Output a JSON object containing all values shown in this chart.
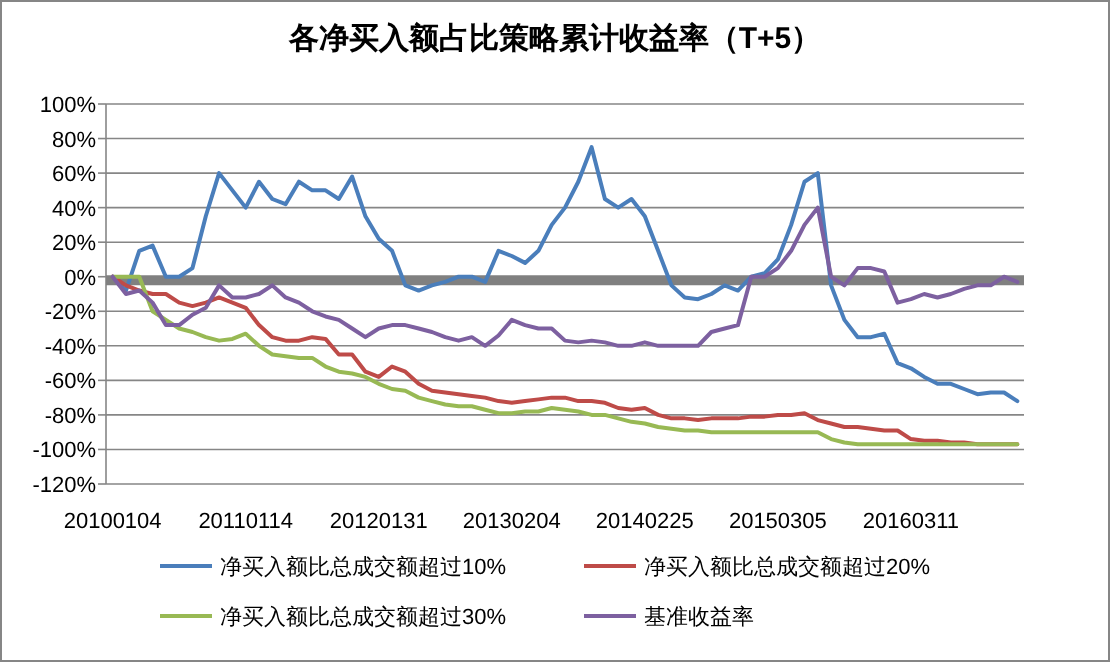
{
  "chart_data": {
    "type": "line",
    "title": "各净买入额占比策略累计收益率（T+5）",
    "categories": [
      "20100104",
      null,
      null,
      null,
      null,
      null,
      null,
      null,
      null,
      null,
      "20110114",
      null,
      null,
      null,
      null,
      null,
      null,
      null,
      null,
      null,
      "20120131",
      null,
      null,
      null,
      null,
      null,
      null,
      null,
      null,
      null,
      "20130204",
      null,
      null,
      null,
      null,
      null,
      null,
      null,
      null,
      null,
      "20140225",
      null,
      null,
      null,
      null,
      null,
      null,
      null,
      null,
      null,
      "20150305",
      null,
      null,
      null,
      null,
      null,
      null,
      null,
      null,
      null,
      "20160311",
      null,
      null,
      null,
      null,
      null,
      null,
      null,
      null
    ],
    "ylim": [
      -120,
      100
    ],
    "yticks": [
      {
        "value": -120,
        "label": "-120%"
      },
      {
        "value": -100,
        "label": "-100%"
      },
      {
        "value": -80,
        "label": "-80%"
      },
      {
        "value": -60,
        "label": "-60%"
      },
      {
        "value": -40,
        "label": "-40%"
      },
      {
        "value": -20,
        "label": "-20%"
      },
      {
        "value": 0,
        "label": "0%"
      },
      {
        "value": 20,
        "label": "20%"
      },
      {
        "value": 40,
        "label": "40%"
      },
      {
        "value": 60,
        "label": "60%"
      },
      {
        "value": 80,
        "label": "80%"
      },
      {
        "value": 100,
        "label": "100%"
      }
    ],
    "grid": "y",
    "legend": "bottom",
    "ref_lines": [
      {
        "axis": "y",
        "value": -2,
        "color": "#808080"
      }
    ],
    "series": [
      {
        "name": "净买入额比总成交额超过10%",
        "color": "#4a7ebb",
        "values": [
          0,
          -8,
          15,
          18,
          0,
          0,
          5,
          35,
          60,
          50,
          40,
          55,
          45,
          42,
          55,
          50,
          50,
          45,
          58,
          35,
          22,
          15,
          -5,
          -8,
          -5,
          -3,
          0,
          0,
          -3,
          15,
          12,
          8,
          15,
          30,
          40,
          55,
          75,
          45,
          40,
          45,
          35,
          15,
          -5,
          -12,
          -13,
          -10,
          -5,
          -8,
          0,
          2,
          10,
          30,
          55,
          60,
          -5,
          -25,
          -35,
          -35,
          -33,
          -50,
          -53,
          -58,
          -62,
          -62,
          -65,
          -68,
          -67,
          -67,
          -72
        ]
      },
      {
        "name": "净买入额比总成交额超过20%",
        "color": "#be4b48",
        "values": [
          0,
          -5,
          -8,
          -10,
          -10,
          -15,
          -17,
          -15,
          -12,
          -15,
          -18,
          -28,
          -35,
          -37,
          -37,
          -35,
          -36,
          -45,
          -45,
          -55,
          -58,
          -52,
          -55,
          -62,
          -66,
          -67,
          -68,
          -69,
          -70,
          -72,
          -73,
          -72,
          -71,
          -70,
          -70,
          -72,
          -72,
          -73,
          -76,
          -77,
          -76,
          -80,
          -82,
          -82,
          -83,
          -82,
          -82,
          -82,
          -81,
          -81,
          -80,
          -80,
          -79,
          -83,
          -85,
          -87,
          -87,
          -88,
          -89,
          -89,
          -94,
          -95,
          -95,
          -96,
          -96,
          -97,
          -97,
          -97,
          -97
        ]
      },
      {
        "name": "净买入额比总成交额超过30%",
        "color": "#98b954",
        "values": [
          0,
          0,
          0,
          -20,
          -25,
          -30,
          -32,
          -35,
          -37,
          -36,
          -33,
          -40,
          -45,
          -46,
          -47,
          -47,
          -52,
          -55,
          -56,
          -58,
          -62,
          -65,
          -66,
          -70,
          -72,
          -74,
          -75,
          -75,
          -77,
          -79,
          -79,
          -78,
          -78,
          -76,
          -77,
          -78,
          -80,
          -80,
          -82,
          -84,
          -85,
          -87,
          -88,
          -89,
          -89,
          -90,
          -90,
          -90,
          -90,
          -90,
          -90,
          -90,
          -90,
          -90,
          -94,
          -96,
          -97,
          -97,
          -97,
          -97,
          -97,
          -97,
          -97,
          -97,
          -97,
          -97,
          -97,
          -97,
          -97
        ]
      },
      {
        "name": "基准收益率",
        "color": "#7d60a0",
        "values": [
          0,
          -10,
          -8,
          -15,
          -28,
          -28,
          -22,
          -18,
          -5,
          -12,
          -12,
          -10,
          -5,
          -12,
          -15,
          -20,
          -23,
          -25,
          -30,
          -35,
          -30,
          -28,
          -28,
          -30,
          -32,
          -35,
          -37,
          -35,
          -40,
          -34,
          -25,
          -28,
          -30,
          -30,
          -37,
          -38,
          -37,
          -38,
          -40,
          -40,
          -38,
          -40,
          -40,
          -40,
          -40,
          -32,
          -30,
          -28,
          0,
          0,
          5,
          15,
          30,
          40,
          0,
          -5,
          5,
          5,
          3,
          -15,
          -13,
          -10,
          -12,
          -10,
          -7,
          -5,
          -5,
          0,
          -3
        ]
      }
    ]
  }
}
